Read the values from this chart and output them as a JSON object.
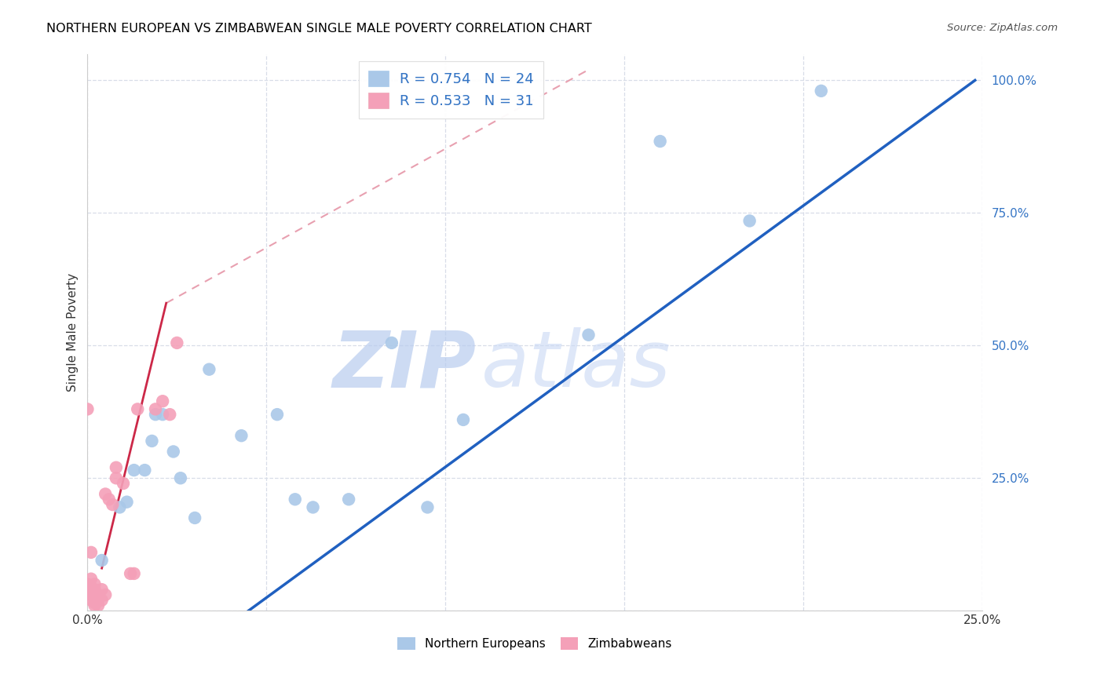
{
  "title": "NORTHERN EUROPEAN VS ZIMBABWEAN SINGLE MALE POVERTY CORRELATION CHART",
  "source": "Source: ZipAtlas.com",
  "ylabel": "Single Male Poverty",
  "xlim": [
    0.0,
    0.25
  ],
  "ylim": [
    0.0,
    1.05
  ],
  "blue_r": 0.754,
  "blue_n": 24,
  "pink_r": 0.533,
  "pink_n": 31,
  "blue_dot_color": "#aac8e8",
  "pink_dot_color": "#f4a0b8",
  "blue_line_color": "#2060c0",
  "pink_line_color": "#cc2848",
  "pink_dash_color": "#e8a0b0",
  "watermark_color": "#ccd8f0",
  "grid_color": "#d8dde8",
  "blue_points": [
    [
      0.004,
      0.095
    ],
    [
      0.009,
      0.195
    ],
    [
      0.011,
      0.205
    ],
    [
      0.013,
      0.265
    ],
    [
      0.016,
      0.265
    ],
    [
      0.018,
      0.32
    ],
    [
      0.019,
      0.37
    ],
    [
      0.021,
      0.37
    ],
    [
      0.024,
      0.3
    ],
    [
      0.026,
      0.25
    ],
    [
      0.03,
      0.175
    ],
    [
      0.034,
      0.455
    ],
    [
      0.043,
      0.33
    ],
    [
      0.053,
      0.37
    ],
    [
      0.058,
      0.21
    ],
    [
      0.063,
      0.195
    ],
    [
      0.073,
      0.21
    ],
    [
      0.085,
      0.505
    ],
    [
      0.095,
      0.195
    ],
    [
      0.105,
      0.36
    ],
    [
      0.14,
      0.52
    ],
    [
      0.16,
      0.885
    ],
    [
      0.185,
      0.735
    ],
    [
      0.205,
      0.98
    ]
  ],
  "pink_points": [
    [
      0.0,
      0.04
    ],
    [
      0.0,
      0.05
    ],
    [
      0.001,
      0.02
    ],
    [
      0.001,
      0.03
    ],
    [
      0.001,
      0.06
    ],
    [
      0.001,
      0.11
    ],
    [
      0.002,
      0.01
    ],
    [
      0.002,
      0.015
    ],
    [
      0.002,
      0.04
    ],
    [
      0.002,
      0.05
    ],
    [
      0.003,
      0.01
    ],
    [
      0.003,
      0.02
    ],
    [
      0.003,
      0.025
    ],
    [
      0.003,
      0.03
    ],
    [
      0.004,
      0.02
    ],
    [
      0.004,
      0.04
    ],
    [
      0.005,
      0.03
    ],
    [
      0.005,
      0.22
    ],
    [
      0.006,
      0.21
    ],
    [
      0.007,
      0.2
    ],
    [
      0.008,
      0.25
    ],
    [
      0.008,
      0.27
    ],
    [
      0.01,
      0.24
    ],
    [
      0.012,
      0.07
    ],
    [
      0.013,
      0.07
    ],
    [
      0.014,
      0.38
    ],
    [
      0.019,
      0.38
    ],
    [
      0.021,
      0.395
    ],
    [
      0.023,
      0.37
    ],
    [
      0.025,
      0.505
    ],
    [
      0.0,
      0.38
    ]
  ],
  "blue_line_x": [
    0.05,
    0.25
  ],
  "blue_line_y": [
    0.0,
    1.0
  ],
  "pink_line_x": [
    0.004,
    0.026
  ],
  "pink_line_y": [
    0.08,
    0.58
  ]
}
